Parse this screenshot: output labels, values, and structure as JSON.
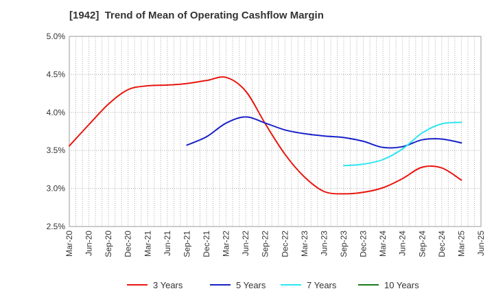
{
  "chart_data": {
    "type": "line",
    "title": "[1942]  Trend of Mean of Operating Cashflow Margin",
    "xlabel": "",
    "ylabel": "",
    "ylim": [
      2.5,
      5.0
    ],
    "y_ticks": [
      "2.5%",
      "3.0%",
      "3.5%",
      "4.0%",
      "4.5%",
      "5.0%"
    ],
    "categories": [
      "Mar-20",
      "Jun-20",
      "Sep-20",
      "Dec-20",
      "Mar-21",
      "Jun-21",
      "Sep-21",
      "Dec-21",
      "Mar-22",
      "Jun-22",
      "Sep-22",
      "Dec-22",
      "Mar-23",
      "Jun-23",
      "Sep-23",
      "Dec-23",
      "Mar-24",
      "Jun-24",
      "Sep-24",
      "Dec-24",
      "Mar-25",
      "Jun-25"
    ],
    "grid": "vertical dotted lines",
    "legend_position": "bottom",
    "series": [
      {
        "name": "3 Years",
        "color": "#e8160f",
        "values": [
          3.56,
          3.84,
          4.11,
          4.3,
          4.35,
          4.36,
          4.38,
          4.42,
          4.46,
          4.28,
          3.85,
          3.45,
          3.15,
          2.96,
          2.93,
          2.95,
          3.01,
          3.13,
          3.28,
          3.27,
          3.11,
          null
        ]
      },
      {
        "name": "5 Years",
        "color": "#1720c8",
        "values": [
          null,
          null,
          null,
          null,
          null,
          null,
          3.57,
          3.68,
          3.86,
          3.94,
          3.86,
          3.77,
          3.72,
          3.69,
          3.67,
          3.62,
          3.54,
          3.55,
          3.64,
          3.65,
          3.6,
          null
        ]
      },
      {
        "name": "7 Years",
        "color": "#2ee6f0",
        "values": [
          null,
          null,
          null,
          null,
          null,
          null,
          null,
          null,
          null,
          null,
          null,
          null,
          null,
          null,
          3.3,
          3.32,
          3.38,
          3.52,
          3.73,
          3.85,
          3.87,
          null
        ]
      },
      {
        "name": "10 Years",
        "color": "#1a7a1a",
        "values": [
          null,
          null,
          null,
          null,
          null,
          null,
          null,
          null,
          null,
          null,
          null,
          null,
          null,
          null,
          null,
          null,
          null,
          null,
          null,
          null,
          null,
          null
        ]
      }
    ]
  }
}
